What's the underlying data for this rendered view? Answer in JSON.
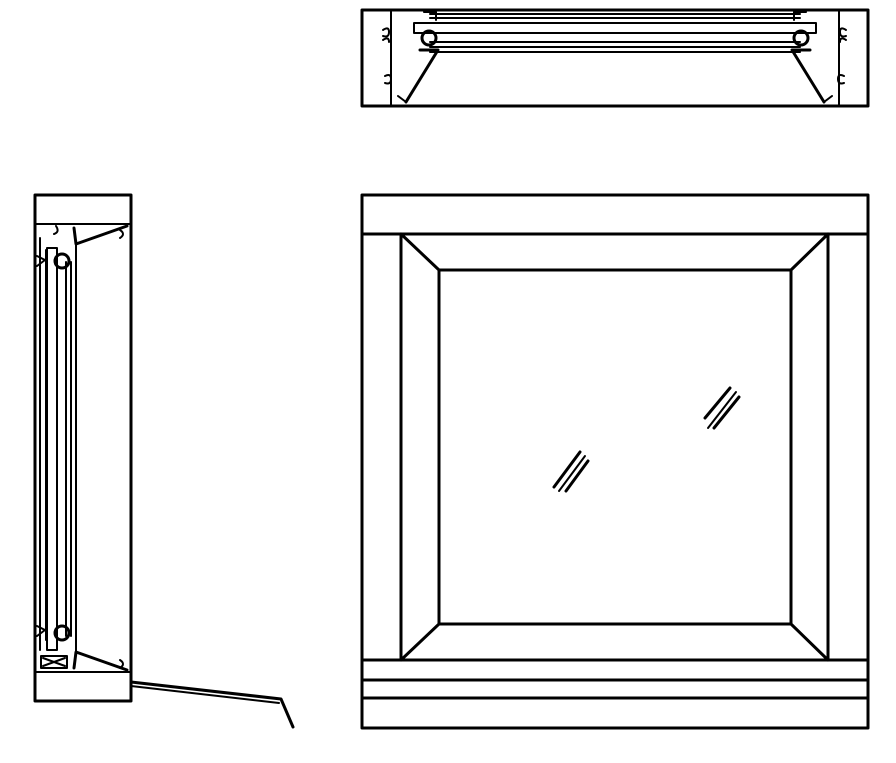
{
  "drawing": {
    "views": [
      "top-section",
      "side-section",
      "front-elevation"
    ],
    "line_color": "#000000",
    "background": "#ffffff",
    "glass_marks_count": 2
  }
}
